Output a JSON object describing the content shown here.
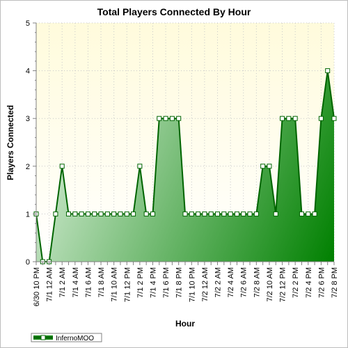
{
  "chart_data": {
    "type": "area",
    "title": "Total Players Connected By Hour",
    "xlabel": "Hour",
    "ylabel": "Players Connected",
    "ylim": [
      0,
      5
    ],
    "yticks": [
      0,
      1,
      2,
      3,
      4,
      5
    ],
    "grid": true,
    "legend_placement": "bottom-left",
    "x": [
      "6/30 10 PM",
      "6/30 11 PM",
      "7/1 12 AM",
      "7/1 1 AM",
      "7/1 2 AM",
      "7/1 3 AM",
      "7/1 4 AM",
      "7/1 5 AM",
      "7/1 6 AM",
      "7/1 7 AM",
      "7/1 8 AM",
      "7/1 9 AM",
      "7/1 10 AM",
      "7/1 11 AM",
      "7/1 12 PM",
      "7/1 1 PM",
      "7/1 2 PM",
      "7/1 3 PM",
      "7/1 4 PM",
      "7/1 5 PM",
      "7/1 6 PM",
      "7/1 7 PM",
      "7/1 8 PM",
      "7/1 9 PM",
      "7/1 10 PM",
      "7/1 11 PM",
      "7/2 12 AM",
      "7/2 1 AM",
      "7/2 2 AM",
      "7/2 3 AM",
      "7/2 4 AM",
      "7/2 5 AM",
      "7/2 6 AM",
      "7/2 7 AM",
      "7/2 8 AM",
      "7/2 9 AM",
      "7/2 10 AM",
      "7/2 11 AM",
      "7/2 12 PM",
      "7/2 1 PM",
      "7/2 2 PM",
      "7/2 3 PM",
      "7/2 4 PM",
      "7/2 5 PM",
      "7/2 6 PM",
      "7/2 7 PM",
      "7/2 8 PM"
    ],
    "tick_labels": [
      "6/30 10 PM",
      "7/1 12 AM",
      "7/1 2 AM",
      "7/1 4 AM",
      "7/1 6 AM",
      "7/1 8 AM",
      "7/1 10 AM",
      "7/1 12 PM",
      "7/1 2 PM",
      "7/1 4 PM",
      "7/1 6 PM",
      "7/1 8 PM",
      "7/1 10 PM",
      "7/2 12 AM",
      "7/2 2 AM",
      "7/2 4 AM",
      "7/2 6 AM",
      "7/2 8 AM",
      "7/2 10 AM",
      "7/2 12 PM",
      "7/2 2 PM",
      "7/2 4 PM",
      "7/2 6 PM",
      "7/2 8 PM"
    ],
    "series": [
      {
        "name": "InfernoMOO",
        "color": "#008000",
        "values": [
          1,
          0,
          0,
          1,
          2,
          1,
          1,
          1,
          1,
          1,
          1,
          1,
          1,
          1,
          1,
          1,
          2,
          1,
          1,
          3,
          3,
          3,
          3,
          1,
          1,
          1,
          1,
          1,
          1,
          1,
          1,
          1,
          1,
          1,
          1,
          2,
          2,
          1,
          3,
          3,
          3,
          1,
          1,
          1,
          3,
          4,
          3
        ]
      }
    ],
    "colors": {
      "plot_background_top": "#fffbdc",
      "plot_background_bottom": "#ffffff",
      "area_light": "#d4ecd4",
      "area_dark": "#008000",
      "line": "#008000",
      "grid": "#c8c8c8"
    }
  }
}
